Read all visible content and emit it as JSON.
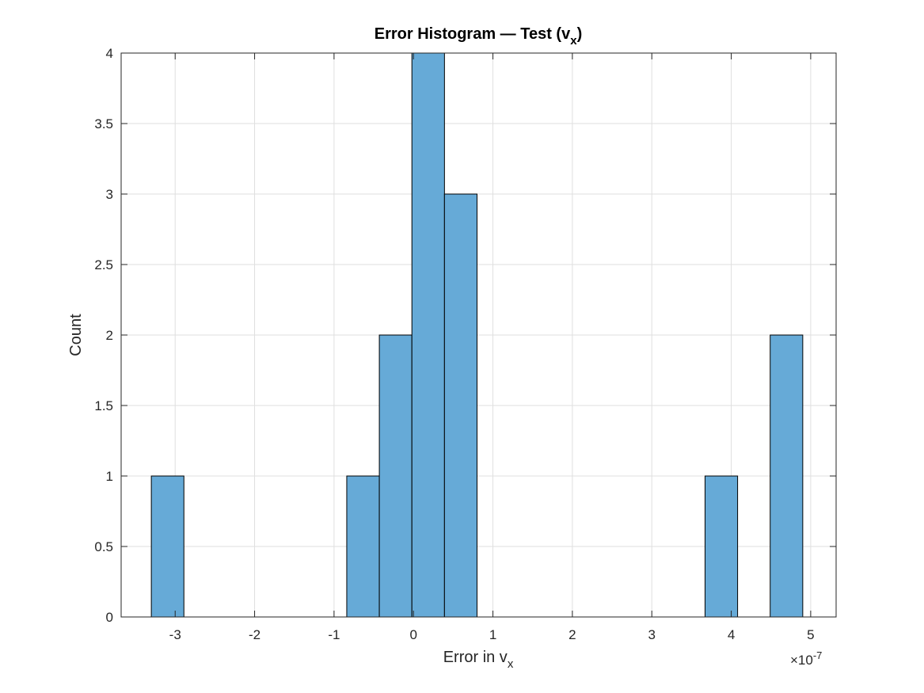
{
  "chart_data": {
    "type": "bar",
    "title_main": "Error Histogram — Test (v",
    "title_sub": "x",
    "title_end": ")",
    "xlabel_main": "Error in v",
    "xlabel_sub": "x",
    "ylabel": "Count",
    "x_exponent_prefix": "×10",
    "x_exponent_power": "-7",
    "x_scale": 1e-07,
    "xlim": [
      -3.68,
      5.32
    ],
    "ylim": [
      0,
      4
    ],
    "xticks": [
      -3,
      -2,
      -1,
      0,
      1,
      2,
      3,
      4,
      5
    ],
    "xtick_labels": [
      "-3",
      "-2",
      "-1",
      "0",
      "1",
      "2",
      "3",
      "4",
      "5"
    ],
    "yticks": [
      0,
      0.5,
      1,
      1.5,
      2,
      2.5,
      3,
      3.5,
      4
    ],
    "ytick_labels": [
      "0",
      "0.5",
      "1",
      "1.5",
      "2",
      "2.5",
      "3",
      "3.5",
      "4"
    ],
    "grid": true,
    "bin_width": 0.41,
    "bins": [
      {
        "left": -3.3,
        "count": 1
      },
      {
        "left": -0.84,
        "count": 1
      },
      {
        "left": -0.43,
        "count": 2
      },
      {
        "left": -0.02,
        "count": 4
      },
      {
        "left": 0.39,
        "count": 3
      },
      {
        "left": 3.67,
        "count": 1
      },
      {
        "left": 4.49,
        "count": 2
      }
    ],
    "bar_color": "#66aad7",
    "bar_edge_color": "#000000"
  }
}
